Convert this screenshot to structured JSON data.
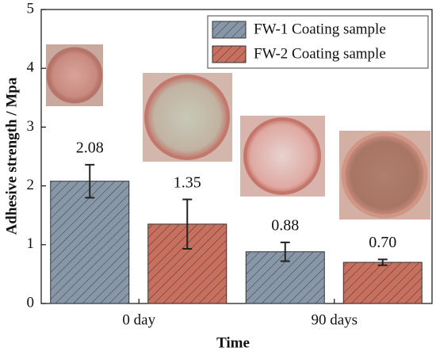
{
  "chart_data": {
    "type": "bar",
    "xlabel": "Time",
    "ylabel": "Adhesive strength / Mpa",
    "categories": [
      "0 day",
      "90 days"
    ],
    "series": [
      {
        "name": "FW-1 Coating sample",
        "color": "#8797a8",
        "values": [
          2.08,
          0.88
        ],
        "errors": [
          0.28,
          0.16
        ],
        "value_labels": [
          "2.08",
          "0.88"
        ]
      },
      {
        "name": "FW-2 Coating sample",
        "color": "#c96f5e",
        "values": [
          1.35,
          0.7
        ],
        "errors": [
          0.42,
          0.05
        ],
        "value_labels": [
          "1.35",
          "0.70"
        ]
      }
    ],
    "ylim": [
      0,
      5
    ],
    "yticks": [
      0,
      1,
      2,
      3,
      4,
      5
    ],
    "legend": "upper right"
  }
}
